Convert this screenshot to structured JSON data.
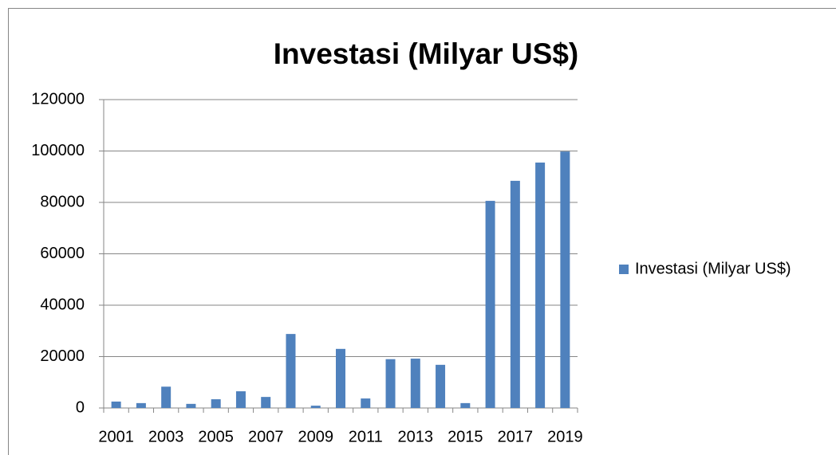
{
  "chart_data": {
    "type": "bar",
    "title": "Investasi (Milyar US$)",
    "categories": [
      "2001",
      null,
      "2003",
      null,
      "2005",
      null,
      "2007",
      null,
      "2009",
      null,
      "2011",
      null,
      "2013",
      null,
      "2015",
      null,
      "2017",
      null,
      "2019"
    ],
    "series": [
      {
        "name": "Investasi (Milyar US$)",
        "color": "#4f81bd",
        "values": [
          2500,
          1900,
          8300,
          1600,
          3400,
          6500,
          4300,
          28800,
          900,
          23000,
          3700,
          19000,
          19200,
          16800,
          1900,
          80600,
          88400,
          95500,
          99800
        ]
      }
    ],
    "ylim": [
      0,
      120000
    ],
    "yticks": [
      0,
      20000,
      40000,
      60000,
      80000,
      100000,
      120000
    ],
    "grid": true,
    "legend": "right"
  }
}
